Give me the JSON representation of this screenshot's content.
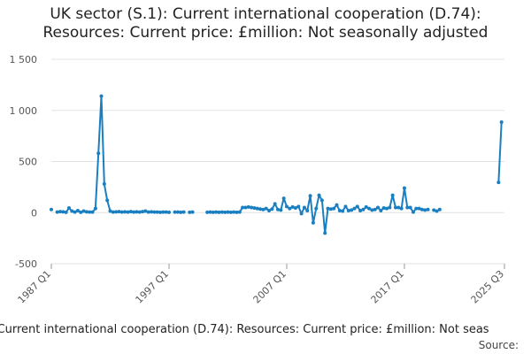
{
  "chart_data": {
    "type": "line",
    "title_lines": [
      "UK sector (S.1): Current international cooperation (D.74):",
      "Resources: Current price: £million: Not seasonally adjusted"
    ],
    "title": "UK sector (S.1): Current international cooperation (D.74): Resources: Current price: £million: Not seasonally adjusted",
    "legend_text": ": Current international cooperation (D.74): Resources: Current price: £million: Not seas",
    "source_label": "Source:",
    "xlabel": "",
    "ylabel": "",
    "ylim": [
      -500,
      1500
    ],
    "xlim": [
      "1987 Q1",
      "2025 Q3"
    ],
    "y_ticks": [
      -500,
      0,
      500,
      1000,
      1500
    ],
    "y_tick_labels": [
      "-500",
      "0",
      "500",
      "1 000",
      "1 500"
    ],
    "x_ticks": [
      "1987 Q1",
      "1997 Q1",
      "2007 Q1",
      "2017 Q1",
      "2025 Q3"
    ],
    "grid": true,
    "legend_position": "bottom",
    "line_color": "#1a7fc1",
    "series": [
      {
        "values": [
          [
            "1987 Q1",
            30
          ],
          [
            "1987 Q2",
            null
          ],
          [
            "1987 Q3",
            5
          ],
          [
            "1987 Q4",
            10
          ],
          [
            "1988 Q1",
            8
          ],
          [
            "1988 Q2",
            3
          ],
          [
            "1988 Q3",
            45
          ],
          [
            "1988 Q4",
            15
          ],
          [
            "1989 Q1",
            5
          ],
          [
            "1989 Q2",
            20
          ],
          [
            "1989 Q3",
            3
          ],
          [
            "1989 Q4",
            15
          ],
          [
            "1990 Q1",
            8
          ],
          [
            "1990 Q2",
            5
          ],
          [
            "1990 Q3",
            5
          ],
          [
            "1990 Q4",
            40
          ],
          [
            "1991 Q1",
            580
          ],
          [
            "1991 Q2",
            1140
          ],
          [
            "1991 Q3",
            280
          ],
          [
            "1991 Q4",
            120
          ],
          [
            "1992 Q1",
            15
          ],
          [
            "1992 Q2",
            5
          ],
          [
            "1992 Q3",
            8
          ],
          [
            "1992 Q4",
            10
          ],
          [
            "1993 Q1",
            5
          ],
          [
            "1993 Q2",
            8
          ],
          [
            "1993 Q3",
            5
          ],
          [
            "1993 Q4",
            10
          ],
          [
            "1994 Q1",
            5
          ],
          [
            "1994 Q2",
            8
          ],
          [
            "1994 Q3",
            5
          ],
          [
            "1994 Q4",
            10
          ],
          [
            "1995 Q1",
            15
          ],
          [
            "1995 Q2",
            5
          ],
          [
            "1995 Q3",
            8
          ],
          [
            "1995 Q4",
            5
          ],
          [
            "1996 Q1",
            5
          ],
          [
            "1996 Q2",
            3
          ],
          [
            "1996 Q3",
            5
          ],
          [
            "1996 Q4",
            5
          ],
          [
            "1997 Q1",
            3
          ],
          [
            "1997 Q2",
            null
          ],
          [
            "1997 Q3",
            5
          ],
          [
            "1997 Q4",
            5
          ],
          [
            "1998 Q1",
            3
          ],
          [
            "1998 Q2",
            5
          ],
          [
            "1998 Q3",
            null
          ],
          [
            "1998 Q4",
            3
          ],
          [
            "1999 Q1",
            5
          ],
          [
            "1999 Q2",
            null
          ],
          [
            "1999 Q3",
            null
          ],
          [
            "1999 Q4",
            null
          ],
          [
            "2000 Q1",
            null
          ],
          [
            "2000 Q2",
            3
          ],
          [
            "2000 Q3",
            5
          ],
          [
            "2000 Q4",
            3
          ],
          [
            "2001 Q1",
            5
          ],
          [
            "2001 Q2",
            3
          ],
          [
            "2001 Q3",
            5
          ],
          [
            "2001 Q4",
            3
          ],
          [
            "2002 Q1",
            5
          ],
          [
            "2002 Q2",
            3
          ],
          [
            "2002 Q3",
            5
          ],
          [
            "2002 Q4",
            3
          ],
          [
            "2003 Q1",
            5
          ],
          [
            "2003 Q2",
            50
          ],
          [
            "2003 Q3",
            50
          ],
          [
            "2003 Q4",
            55
          ],
          [
            "2004 Q1",
            50
          ],
          [
            "2004 Q2",
            45
          ],
          [
            "2004 Q3",
            40
          ],
          [
            "2004 Q4",
            35
          ],
          [
            "2005 Q1",
            30
          ],
          [
            "2005 Q2",
            40
          ],
          [
            "2005 Q3",
            20
          ],
          [
            "2005 Q4",
            35
          ],
          [
            "2006 Q1",
            85
          ],
          [
            "2006 Q2",
            30
          ],
          [
            "2006 Q3",
            25
          ],
          [
            "2006 Q4",
            140
          ],
          [
            "2007 Q1",
            60
          ],
          [
            "2007 Q2",
            40
          ],
          [
            "2007 Q3",
            55
          ],
          [
            "2007 Q4",
            45
          ],
          [
            "2008 Q1",
            60
          ],
          [
            "2008 Q2",
            -10
          ],
          [
            "2008 Q3",
            50
          ],
          [
            "2008 Q4",
            20
          ],
          [
            "2009 Q1",
            165
          ],
          [
            "2009 Q2",
            -100
          ],
          [
            "2009 Q3",
            40
          ],
          [
            "2009 Q4",
            170
          ],
          [
            "2010 Q1",
            120
          ],
          [
            "2010 Q2",
            -200
          ],
          [
            "2010 Q3",
            40
          ],
          [
            "2010 Q4",
            35
          ],
          [
            "2011 Q1",
            40
          ],
          [
            "2011 Q2",
            75
          ],
          [
            "2011 Q3",
            20
          ],
          [
            "2011 Q4",
            15
          ],
          [
            "2012 Q1",
            60
          ],
          [
            "2012 Q2",
            20
          ],
          [
            "2012 Q3",
            25
          ],
          [
            "2012 Q4",
            40
          ],
          [
            "2013 Q1",
            60
          ],
          [
            "2013 Q2",
            20
          ],
          [
            "2013 Q3",
            30
          ],
          [
            "2013 Q4",
            55
          ],
          [
            "2014 Q1",
            40
          ],
          [
            "2014 Q2",
            25
          ],
          [
            "2014 Q3",
            30
          ],
          [
            "2014 Q4",
            50
          ],
          [
            "2015 Q1",
            20
          ],
          [
            "2015 Q2",
            45
          ],
          [
            "2015 Q3",
            40
          ],
          [
            "2015 Q4",
            50
          ],
          [
            "2016 Q1",
            170
          ],
          [
            "2016 Q2",
            50
          ],
          [
            "2016 Q3",
            50
          ],
          [
            "2016 Q4",
            40
          ],
          [
            "2017 Q1",
            240
          ],
          [
            "2017 Q2",
            50
          ],
          [
            "2017 Q3",
            50
          ],
          [
            "2017 Q4",
            5
          ],
          [
            "2018 Q1",
            40
          ],
          [
            "2018 Q2",
            40
          ],
          [
            "2018 Q3",
            30
          ],
          [
            "2018 Q4",
            25
          ],
          [
            "2019 Q1",
            30
          ],
          [
            "2019 Q2",
            null
          ],
          [
            "2019 Q3",
            25
          ],
          [
            "2019 Q4",
            15
          ],
          [
            "2020 Q1",
            30
          ],
          [
            "2020 Q2",
            null
          ],
          [
            "2020 Q3",
            null
          ],
          [
            "2020 Q4",
            null
          ],
          [
            "2021 Q1",
            null
          ],
          [
            "2021 Q2",
            null
          ],
          [
            "2021 Q3",
            null
          ],
          [
            "2021 Q4",
            null
          ],
          [
            "2022 Q1",
            null
          ],
          [
            "2022 Q2",
            null
          ],
          [
            "2022 Q3",
            null
          ],
          [
            "2022 Q4",
            null
          ],
          [
            "2023 Q1",
            null
          ],
          [
            "2023 Q2",
            null
          ],
          [
            "2023 Q3",
            null
          ],
          [
            "2023 Q4",
            null
          ],
          [
            "2024 Q1",
            null
          ],
          [
            "2024 Q2",
            null
          ],
          [
            "2024 Q3",
            null
          ],
          [
            "2024 Q4",
            null
          ],
          [
            "2025 Q1",
            295
          ],
          [
            "2025 Q2",
            885
          ]
        ]
      }
    ]
  }
}
